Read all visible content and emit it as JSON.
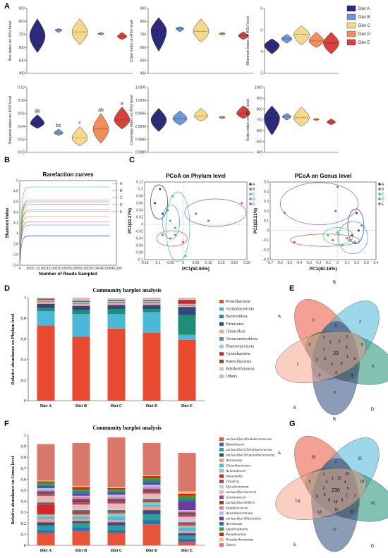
{
  "panel_labels": [
    "A",
    "B",
    "C",
    "D",
    "E",
    "F",
    "G"
  ],
  "chart_data": [
    {
      "type": "violin",
      "panel": "A",
      "ylabel": "Ace index on ASV level",
      "yticks": [
        "400",
        "500",
        "600",
        "700",
        "800",
        "900"
      ],
      "ylim": [
        400,
        900
      ],
      "groups": [
        "Diet A",
        "Diet B",
        "Diet C",
        "Diet D",
        "Diet E"
      ],
      "median": [
        690,
        735,
        720,
        705,
        685
      ],
      "range": [
        [
          560,
          820
        ],
        [
          715,
          745
        ],
        [
          620,
          820
        ],
        [
          695,
          715
        ],
        [
          660,
          715
        ]
      ]
    },
    {
      "type": "violin",
      "panel": "A",
      "ylabel": "Chao index on ASV level",
      "yticks": [
        "400",
        "500",
        "600",
        "700",
        "800",
        "900"
      ],
      "ylim": [
        400,
        900
      ],
      "groups": [
        "Diet A",
        "Diet B",
        "Diet C",
        "Diet D",
        "Diet E"
      ],
      "median": [
        730,
        745,
        725,
        705,
        690
      ],
      "range": [
        [
          570,
          830
        ],
        [
          720,
          760
        ],
        [
          640,
          820
        ],
        [
          695,
          715
        ],
        [
          660,
          720
        ]
      ]
    },
    {
      "type": "violin",
      "panel": "A",
      "ylabel": "Shannon index on ASV level",
      "yticks": [
        "3",
        "4",
        "5",
        "6"
      ],
      "ylim": [
        3,
        6
      ],
      "groups": [
        "Diet A",
        "Diet B",
        "Diet C",
        "Diet D",
        "Diet E"
      ],
      "median": [
        4.3,
        4.6,
        4.8,
        4.5,
        4.4
      ],
      "range": [
        [
          3.9,
          4.6
        ],
        [
          4.4,
          4.8
        ],
        [
          4.3,
          5.2
        ],
        [
          4.2,
          4.9
        ],
        [
          3.9,
          4.9
        ]
      ]
    },
    {
      "type": "violin",
      "panel": "A",
      "ylabel": "Simpson index on ASV level",
      "yticks": [
        "0.00",
        "0.02",
        "0.04",
        "0.06",
        "0.08",
        "0.10"
      ],
      "ylim": [
        0,
        0.1
      ],
      "groups": [
        "Diet A",
        "Diet B",
        "Diet C",
        "Diet D",
        "Diet E"
      ],
      "median": [
        0.045,
        0.03,
        0.022,
        0.036,
        0.05
      ],
      "range": [
        [
          0.037,
          0.058
        ],
        [
          0.026,
          0.036
        ],
        [
          0.01,
          0.04
        ],
        [
          0.014,
          0.06
        ],
        [
          0.036,
          0.07
        ]
      ],
      "significance": [
        "ab",
        "bc",
        "c",
        "ab",
        "a"
      ]
    },
    {
      "type": "violin",
      "panel": "A",
      "ylabel": "Coverage index on ASV level",
      "yticks": [
        "0.9980",
        "0.9985",
        "0.9990",
        "0.9995",
        "1.0000",
        "1.0005"
      ],
      "ylim": [
        0.998,
        1.0005
      ],
      "groups": [
        "Diet A",
        "Diet B",
        "Diet C",
        "Diet D",
        "Diet E"
      ],
      "median": [
        0.99925,
        0.9993,
        0.9994,
        0.99935,
        0.9995
      ],
      "range": [
        [
          0.9988,
          0.9997
        ],
        [
          0.99905,
          0.9996
        ],
        [
          0.9992,
          0.9997
        ],
        [
          0.9993,
          0.9994
        ],
        [
          0.9993,
          0.9998
        ]
      ]
    },
    {
      "type": "violin",
      "panel": "A",
      "ylabel": "Sobs index on ASV level",
      "yticks": [
        "400",
        "500",
        "600",
        "700",
        "800",
        "900",
        "1000"
      ],
      "ylim": [
        400,
        1000
      ],
      "groups": [
        "Diet A",
        "Diet B",
        "Diet C",
        "Diet D",
        "Diet E"
      ],
      "median": [
        720,
        730,
        720,
        705,
        680
      ],
      "range": [
        [
          560,
          830
        ],
        [
          700,
          760
        ],
        [
          640,
          820
        ],
        [
          695,
          715
        ],
        [
          655,
          710
        ]
      ]
    },
    {
      "type": "line",
      "panel": "B",
      "title": "Rarefaction curves",
      "xlabel": "Number of Reads Sampled",
      "ylabel": "Shannon index",
      "xticks": [
        "0",
        "5000",
        "10,000",
        "15,000",
        "20,000",
        "25,000",
        "30,000",
        "35,000",
        "40,000",
        "45,000"
      ],
      "yticks": [
        "3.4",
        "3.6",
        "3.8",
        "4",
        "4.2",
        "4.4",
        "4.6",
        "4.8",
        "5"
      ],
      "xlim": [
        0,
        45000
      ],
      "ylim": [
        3.4,
        5.0
      ],
      "series": [
        {
          "name": "A",
          "color": "#e67e22",
          "plateaus": [
            4.32,
            4.42,
            4.45
          ]
        },
        {
          "name": "B",
          "color": "#e84393",
          "plateaus": [
            4.6,
            4.55
          ]
        },
        {
          "name": "C",
          "color": "#2ecc71",
          "plateaus": [
            4.88,
            4.63
          ]
        },
        {
          "name": "D",
          "color": "#3498db",
          "plateaus": [
            4.16,
            3.95
          ]
        },
        {
          "name": "E",
          "color": "#9b59b6",
          "plateaus": [
            4.22,
            3.96
          ]
        }
      ]
    },
    {
      "type": "scatter",
      "panel": "C",
      "title": "PCoA on Phylum  level",
      "xlabel": "PC1(50.94%)",
      "ylabel": "PC2(22.27%)",
      "xticks": [
        "-0.15",
        "-0.1",
        "-0.05",
        "0",
        "0.05",
        "0.10",
        "0.15",
        "0.20",
        "0.25"
      ],
      "yticks": [
        "-0.1",
        "-0.08",
        "-0.06",
        "-0.04",
        "-0.02",
        "0",
        "0.02",
        "0.04",
        "0.06",
        "0.08",
        "0.1",
        "0.12"
      ],
      "xlim": [
        -0.15,
        0.25
      ],
      "ylim": [
        -0.1,
        0.12
      ],
      "legend": [
        "A",
        "B",
        "C",
        "D",
        "E"
      ],
      "series": [
        {
          "name": "A",
          "color": "#1f3b73",
          "points": [
            [
              -0.11,
              0.06
            ],
            [
              -0.09,
              0.1
            ],
            [
              -0.08,
              0.03
            ]
          ]
        },
        {
          "name": "B",
          "color": "#e74c3c",
          "points": [
            [
              -0.05,
              -0.04
            ],
            [
              0,
              -0.05
            ],
            [
              -0.08,
              -0.03
            ]
          ]
        },
        {
          "name": "C",
          "color": "#2ecc71",
          "points": [
            [
              -0.04,
              0.08
            ],
            [
              0.01,
              -0.09
            ],
            [
              -0.03,
              -0.01
            ]
          ]
        },
        {
          "name": "D",
          "color": "#3498db",
          "points": [
            [
              -0.06,
              0.04
            ],
            [
              -0.03,
              -0.03
            ],
            [
              -0.05,
              0.01
            ]
          ]
        },
        {
          "name": "E",
          "color": "#9b59b6",
          "points": [
            [
              0.1,
              0.01
            ],
            [
              0.23,
              0.06
            ],
            [
              0.05,
              0.03
            ]
          ]
        }
      ]
    },
    {
      "type": "scatter",
      "panel": "C",
      "title": "PCoA on Genus  level",
      "xlabel": "PC1(40.16%)",
      "ylabel": "PC2(22.21%)",
      "xticks": [
        "-0.7",
        "-0.6",
        "-0.5",
        "-0.4",
        "-0.3",
        "-0.2",
        "-0.1",
        "0",
        "0.1",
        "0.2",
        "0.3",
        "0.4"
      ],
      "yticks": [
        "-0.3",
        "-0.2",
        "-0.1",
        "0",
        "0.1",
        "0.2",
        "0.3",
        "0.4",
        "0.5"
      ],
      "xlim": [
        -0.7,
        0.4
      ],
      "ylim": [
        -0.3,
        0.5
      ],
      "legend": [
        "A",
        "B",
        "C",
        "D",
        "E"
      ],
      "series": [
        {
          "name": "A",
          "color": "#1f3b73",
          "points": [
            [
              0.2,
              0.18
            ],
            [
              0.15,
              -0.05
            ],
            [
              0.22,
              0.0
            ]
          ]
        },
        {
          "name": "B",
          "color": "#e74c3c",
          "points": [
            [
              -0.45,
              -0.12
            ],
            [
              0.1,
              -0.08
            ],
            [
              -0.05,
              -0.1
            ]
          ]
        },
        {
          "name": "C",
          "color": "#2ecc71",
          "points": [
            [
              0.0,
              -0.02
            ],
            [
              -0.1,
              -0.05
            ],
            [
              0.12,
              -0.1
            ]
          ]
        },
        {
          "name": "D",
          "color": "#3498db",
          "points": [
            [
              0.05,
              -0.15
            ],
            [
              0.18,
              -0.12
            ],
            [
              0.25,
              0.05
            ]
          ]
        },
        {
          "name": "E",
          "color": "#9b59b6",
          "points": [
            [
              -0.55,
              0.18
            ],
            [
              0.0,
              0.45
            ],
            [
              -0.02,
              0.2
            ]
          ]
        }
      ]
    },
    {
      "type": "bar",
      "stacked": true,
      "panel": "D",
      "title": "Community barplot analysis",
      "ylabel": "Relative abundance on Phylum level",
      "yticks": [
        "0",
        "0.2",
        "0.4",
        "0.6",
        "0.8",
        "1"
      ],
      "ylim": [
        0,
        1
      ],
      "categories": [
        "Diet A",
        "Diet B",
        "Diet  C",
        "Diet D",
        "Diet E"
      ],
      "series": [
        {
          "name": "Proteobacteria",
          "color": "#e84a2f",
          "values": [
            0.73,
            0.62,
            0.7,
            0.66,
            0.59
          ]
        },
        {
          "name": "Actinobacteriota",
          "color": "#4ab8d9",
          "values": [
            0.14,
            0.22,
            0.14,
            0.2,
            0.05
          ]
        },
        {
          "name": "Bacteroidota",
          "color": "#1e8f75",
          "values": [
            0.03,
            0.04,
            0.05,
            0.03,
            0.19
          ]
        },
        {
          "name": "Firmicutes",
          "color": "#2f4a7a",
          "values": [
            0.04,
            0.04,
            0.04,
            0.04,
            0.08
          ]
        },
        {
          "name": "Chloroflexi",
          "color": "#f5a58c",
          "values": [
            0.02,
            0.02,
            0.02,
            0.02,
            0.01
          ]
        },
        {
          "name": "Verrucomicrobiota",
          "color": "#7e7ab8",
          "values": [
            0.01,
            0.01,
            0.01,
            0.01,
            0.01
          ]
        },
        {
          "name": "Planctomycetota",
          "color": "#86d4c8",
          "values": [
            0.01,
            0.01,
            0.01,
            0.01,
            0.01
          ]
        },
        {
          "name": "Cyanobacteria",
          "color": "#d9201f",
          "values": [
            0.0,
            0.0,
            0.0,
            0.0,
            0.03
          ]
        },
        {
          "name": "Patescibacteria",
          "color": "#7a5138",
          "values": [
            0.01,
            0.01,
            0.01,
            0.01,
            0.01
          ]
        },
        {
          "name": "Bdellovibrionota",
          "color": "#bfc3e0",
          "values": [
            0.005,
            0.01,
            0.005,
            0.005,
            0.005
          ]
        },
        {
          "name": "Others",
          "color": "#e8b4a0",
          "values": [
            0.005,
            0.02,
            0.01,
            0.015,
            0.015
          ]
        }
      ]
    },
    {
      "type": "bar",
      "stacked": true,
      "panel": "F",
      "title": "Community barplot analysis",
      "ylabel": "Relative abundance on Genus level",
      "yticks": [
        "0",
        "0.1",
        "0.2",
        "0.3",
        "0.4",
        "0.5",
        "0.6",
        "0.7",
        "0.8",
        "0.9",
        "1"
      ],
      "ylim": [
        0,
        1
      ],
      "categories": [
        "Diet A",
        "Diet B",
        "Diet  C",
        "Diet D",
        "Diet E"
      ],
      "series": [
        {
          "name": "unclassified Rhodobacteraceae",
          "color": "#e8543a",
          "values": [
            0.11,
            0.13,
            0.11,
            0.19,
            0.03
          ]
        },
        {
          "name": "Rhodobacter",
          "color": "#2f6eb5",
          "values": [
            0.03,
            0.03,
            0.03,
            0.04,
            0.03
          ]
        },
        {
          "name": "unclassified Chitinibacteraceae",
          "color": "#2aa198",
          "values": [
            0.04,
            0.04,
            0.04,
            0.05,
            0.03
          ]
        },
        {
          "name": "unclassified Propionibacteraceae",
          "color": "#3d4a8a",
          "values": [
            0.03,
            0.02,
            0.03,
            0.04,
            0.02
          ]
        },
        {
          "name": "Aeromonas",
          "color": "#f39c7a",
          "values": [
            0.03,
            0.02,
            0.02,
            0.03,
            0.02
          ]
        },
        {
          "name": "Cloacibacterium",
          "color": "#56b4e9",
          "values": [
            0.02,
            0.02,
            0.03,
            0.02,
            0.03
          ]
        },
        {
          "name": "Acinetobacter",
          "color": "#7fd1c7",
          "values": [
            0.02,
            0.02,
            0.03,
            0.02,
            0.02
          ]
        },
        {
          "name": "Shewanella",
          "color": "#d62728",
          "values": [
            0.09,
            0.01,
            0.01,
            0.01,
            0.01
          ]
        },
        {
          "name": "Thiothrix",
          "color": "#8c564b",
          "values": [
            0.02,
            0.03,
            0.02,
            0.02,
            0.02
          ]
        },
        {
          "name": "Mycobacterium",
          "color": "#c5c9e6",
          "values": [
            0.02,
            0.02,
            0.02,
            0.02,
            0.03
          ]
        },
        {
          "name": "unclassified bacteria",
          "color": "#f0b7a4",
          "values": [
            0.04,
            0.03,
            0.04,
            0.03,
            0.02
          ]
        },
        {
          "name": "Gemmobacter",
          "color": "#a83f8f",
          "values": [
            0.02,
            0.02,
            0.02,
            0.02,
            0.02
          ]
        },
        {
          "name": "unclassified PeM15",
          "color": "#7b4a2c",
          "values": [
            0.02,
            0.03,
            0.02,
            0.02,
            0.02
          ]
        },
        {
          "name": "Staphylococcus",
          "color": "#e377c2",
          "values": [
            0.01,
            0.02,
            0.02,
            0.02,
            0.01
          ]
        },
        {
          "name": "Aurantimicrobium",
          "color": "#9ecae1",
          "values": [
            0.02,
            0.01,
            0.02,
            0.02,
            0.01
          ]
        },
        {
          "name": "unclassified Rhizobiales",
          "color": "#6a3d9a",
          "values": [
            0.02,
            0.02,
            0.02,
            0.02,
            0.08
          ]
        },
        {
          "name": "Aeromonas",
          "color": "#1f78b4",
          "values": [
            0.01,
            0.02,
            0.01,
            0.02,
            0.02
          ]
        },
        {
          "name": "Quadrisphaera",
          "color": "#33a02c",
          "values": [
            0.02,
            0.02,
            0.02,
            0.02,
            0.03
          ]
        },
        {
          "name": "Pseudomonas",
          "color": "#e31a1c",
          "values": [
            0.01,
            0.02,
            0.01,
            0.02,
            0.02
          ]
        },
        {
          "name": "Pseudarthromonas",
          "color": "#fdbf6f",
          "values": [
            0.01,
            0.01,
            0.01,
            0.01,
            0.02
          ]
        },
        {
          "name": "Others",
          "color": "#d9776a",
          "values": [
            0.33,
            0.39,
            0.45,
            0.29,
            0.35
          ]
        }
      ]
    },
    {
      "type": "venn",
      "panel": "E",
      "sets": [
        "A",
        "B",
        "C",
        "D",
        "E"
      ],
      "set_colors": [
        "#e8543a",
        "#4ab8d9",
        "#1e8f75",
        "#2f4a7a",
        "#f5a58c"
      ],
      "core": "23",
      "values": [
        "0",
        "3",
        "0",
        "0",
        "2",
        "0",
        "0",
        "3",
        "0",
        "0",
        "1",
        "0",
        "0",
        "3",
        "1",
        "0",
        "0",
        "1",
        "0",
        "0",
        "2",
        "2",
        "3"
      ]
    },
    {
      "type": "venn",
      "panel": "G",
      "sets": [
        "A",
        "B",
        "C",
        "D",
        "E"
      ],
      "set_colors": [
        "#e8543a",
        "#4ab8d9",
        "#1e8f75",
        "#2f4a7a",
        "#f5a58c"
      ],
      "core": "230",
      "values": [
        "28",
        "55",
        "62",
        "17",
        "111",
        "7",
        "18",
        "27",
        "13",
        "5",
        "13",
        "7",
        "15",
        "9",
        "7",
        "22",
        "4",
        "5",
        "2",
        "9",
        "15",
        "8",
        "9",
        "2",
        "3",
        "1"
      ]
    }
  ]
}
